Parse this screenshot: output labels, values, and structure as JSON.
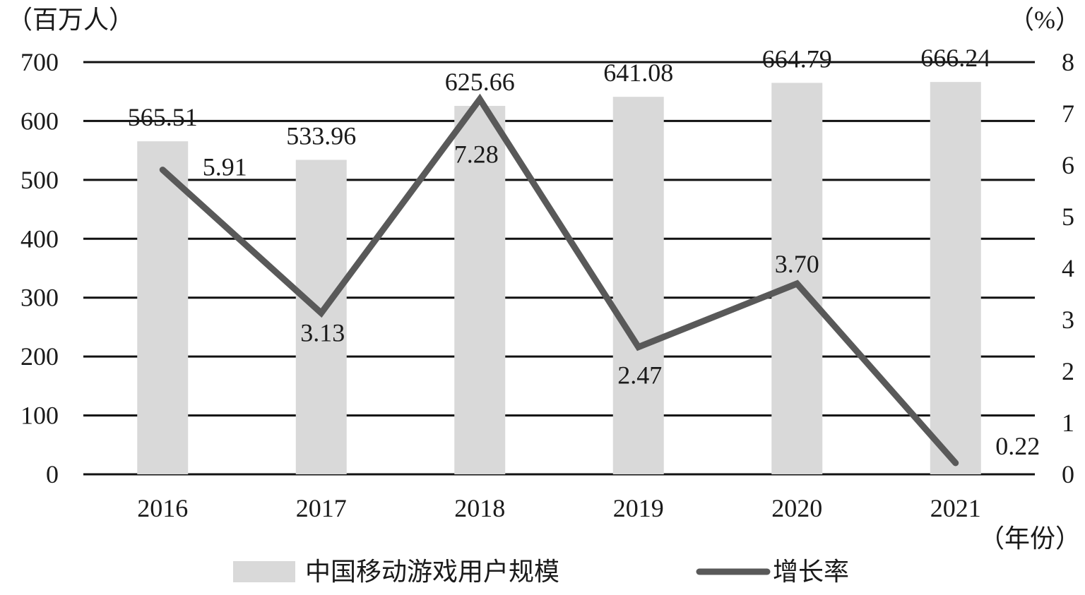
{
  "chart_data": {
    "type": "bar",
    "categories": [
      "2016",
      "2017",
      "2018",
      "2019",
      "2020",
      "2021"
    ],
    "series": [
      {
        "name": "中国移动游戏用户规模",
        "kind": "bar",
        "axis": "left",
        "values": [
          565.51,
          533.96,
          625.66,
          641.08,
          664.79,
          666.24
        ],
        "labels": [
          "565.51",
          "533.96",
          "625.66",
          "641.08",
          "664.79",
          "666.24"
        ],
        "color": "#d9d9d9"
      },
      {
        "name": "增长率",
        "kind": "line",
        "axis": "right",
        "values": [
          5.91,
          3.13,
          7.28,
          2.47,
          3.7,
          0.22
        ],
        "labels": [
          "5.91",
          "3.13",
          "7.28",
          "2.47",
          "3.70",
          "0.22"
        ],
        "color": "#595959"
      }
    ],
    "y_left": {
      "unit_label": "（百万人）",
      "ticks": [
        "0",
        "100",
        "200",
        "300",
        "400",
        "500",
        "600",
        "700"
      ],
      "ylim": [
        0,
        700
      ]
    },
    "y_right": {
      "unit_label": "（%）",
      "ticks": [
        "0",
        "1",
        "2",
        "3",
        "4",
        "5",
        "6",
        "7",
        "8"
      ],
      "ylim": [
        0,
        8
      ]
    },
    "x_unit_label": "（年份）",
    "grid": true,
    "legend_position": "bottom"
  }
}
